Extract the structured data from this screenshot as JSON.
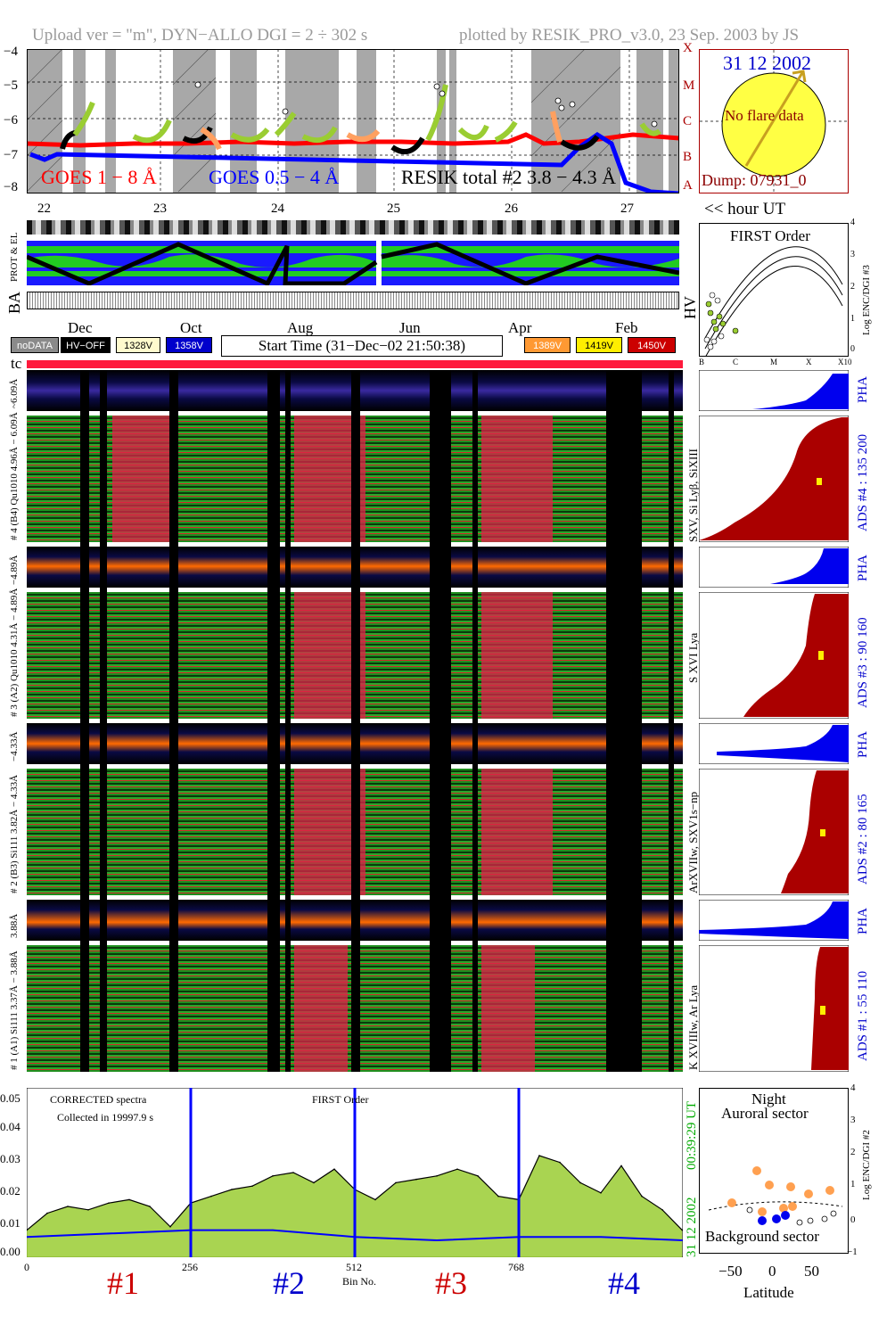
{
  "header": {
    "left": "Upload ver = \"m\", DYN−ALLO DGI =   2 ÷ 302 s",
    "right": "plotted by RESIK_PRO_v3.0, 23 Sep. 2003 by JS"
  },
  "goes": {
    "yticks": [
      "−4",
      "−5",
      "−6",
      "−7",
      "−8"
    ],
    "classes": [
      "X",
      "M",
      "C",
      "B",
      "A"
    ],
    "label_red": "GOES 1 − 8 Å",
    "label_blue": "GOES 0.5 − 4 Å",
    "label_black": "RESIK total #2  3.8 − 4.3 Å",
    "colors": {
      "long": "#ff0000",
      "short": "#0000ff",
      "resik": "#000000",
      "orbit_a": "#9acd32",
      "orbit_b": "#ffa060"
    }
  },
  "sun_panel": {
    "date": "31 12 2002",
    "message": "No flare data",
    "dump": "Dump: 07931_0"
  },
  "hours": {
    "ticks": [
      "22",
      "23",
      "24",
      "25",
      "26",
      "27"
    ],
    "unit": "<< hour UT"
  },
  "side_labels": {
    "prot": "PROT & EL",
    "ba": "BA",
    "hv": "HV",
    "tc": "tc"
  },
  "months": [
    "Dec",
    "Oct",
    "Aug",
    "Jun",
    "Apr",
    "Feb"
  ],
  "badges": {
    "nodata": "noDATA",
    "hvoff": "HV−OFF",
    "v1": "1328V",
    "v2": "1358V",
    "v3": "1389V",
    "v4": "1419V",
    "v5": "1450V",
    "start_time": "Start Time (31−Dec−02 21:50:38)"
  },
  "first_order": {
    "title": "FIRST Order",
    "ylabel": "Log ENC/DGI #3",
    "yticks": [
      "4",
      "3",
      "2",
      "1",
      "0"
    ],
    "xticks": [
      "B",
      "C",
      "M",
      "X",
      "X10"
    ]
  },
  "channels": [
    {
      "pha_label": "~6.09Å",
      "label": "# 4 (B4) Qu1010  4.96Å − 6.09Å",
      "lines": "SXV, Si Lyβ, SiXIII",
      "ads": "ADS #4 :   135 200",
      "pha": "PHA"
    },
    {
      "pha_label": "−4.89Å",
      "label": "# 3 (A2) Qu1010  4.31Å − 4.89Å",
      "lines": "S XVI Lya",
      "ads": "ADS #3 :   90 160",
      "pha": "PHA"
    },
    {
      "pha_label": "−4.33Å",
      "label": "# 2 (B3) Si111  3.82Å − 4.33Å",
      "lines": "ArXVIIw, SXV1s−np",
      "ads": "ADS #2 :   80 165",
      "pha": "PHA"
    },
    {
      "pha_label": "3.88Å",
      "label": "# 1 (A1) Si111  3.37Å − 3.88Å",
      "lines": "K XVIIIw, Ar Lya",
      "ads": "ADS #1 :   55 110",
      "pha": "PHA"
    }
  ],
  "spectrum": {
    "title1": "CORRECTED spectra",
    "title2": "Collected in 19997.9 s",
    "title3": "FIRST Order",
    "yticks": [
      "0.05",
      "0.04",
      "0.03",
      "0.02",
      "0.01",
      "0.00"
    ],
    "xticks": [
      "0",
      "256",
      "512",
      "768"
    ],
    "xlabel": "Bin No.",
    "time": "00:39:29 UT",
    "date": "31 12 2002",
    "sections": [
      "#1",
      "#2",
      "#3",
      "#4"
    ]
  },
  "latitude_panel": {
    "title1": "Night",
    "title2": "Auroral sector",
    "bottom": "Background sector",
    "ylabel": "Log ENC/DGI #2",
    "yticks": [
      "4",
      "3",
      "2",
      "1",
      "0",
      "−1"
    ],
    "xticks": [
      "−50",
      "0",
      "50"
    ],
    "xlabel": "Latitude"
  },
  "chart_data": {
    "type": "line",
    "title": "CORRECTED spectra",
    "xlabel": "Bin No.",
    "ylim": [
      0,
      0.05
    ],
    "xlim": [
      0,
      1024
    ],
    "series": [
      {
        "name": "CORRECTED spectra",
        "color": "#000000",
        "x": [
          0,
          32,
          64,
          96,
          128,
          160,
          192,
          224,
          256,
          288,
          320,
          352,
          384,
          416,
          448,
          480,
          512,
          544,
          576,
          608,
          640,
          672,
          704,
          736,
          768,
          800,
          832,
          864,
          896,
          928,
          960,
          992,
          1023
        ],
        "values": [
          0.008,
          0.013,
          0.015,
          0.014,
          0.016,
          0.017,
          0.015,
          0.009,
          0.016,
          0.018,
          0.02,
          0.021,
          0.024,
          0.025,
          0.022,
          0.026,
          0.02,
          0.017,
          0.022,
          0.023,
          0.024,
          0.026,
          0.024,
          0.018,
          0.017,
          0.03,
          0.028,
          0.022,
          0.019,
          0.027,
          0.018,
          0.014,
          0.008
        ]
      },
      {
        "name": "background",
        "color": "#0000ff",
        "x": [
          0,
          128,
          256,
          384,
          512,
          640,
          768,
          896,
          1023
        ],
        "values": [
          0.006,
          0.007,
          0.008,
          0.008,
          0.006,
          0.005,
          0.006,
          0.006,
          0.005
        ]
      }
    ]
  }
}
